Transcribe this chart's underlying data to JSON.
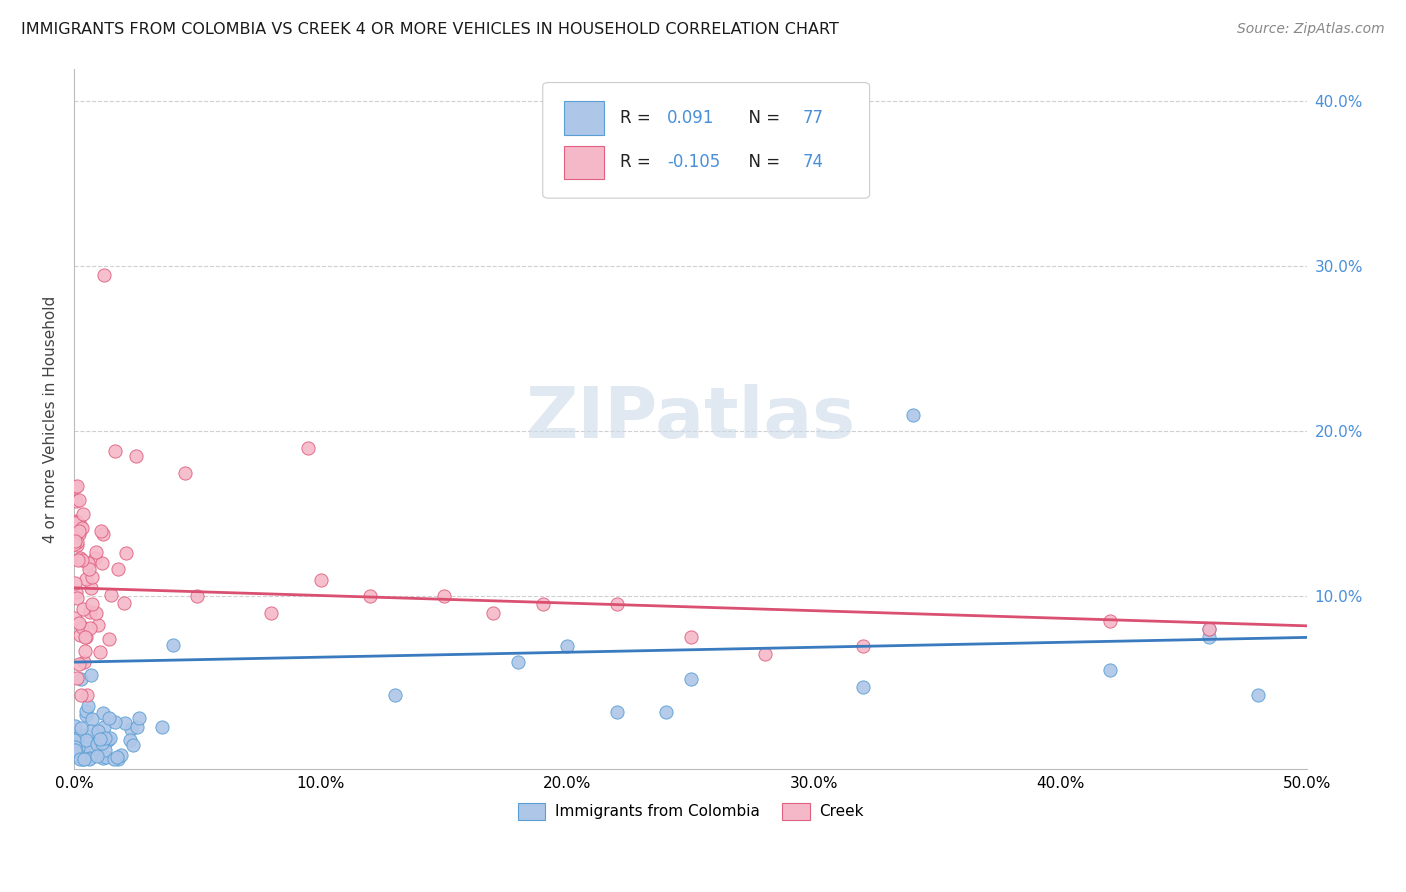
{
  "title": "IMMIGRANTS FROM COLOMBIA VS CREEK 4 OR MORE VEHICLES IN HOUSEHOLD CORRELATION CHART",
  "source": "Source: ZipAtlas.com",
  "ylabel": "4 or more Vehicles in Household",
  "xlim": [
    0.0,
    0.5
  ],
  "ylim": [
    -0.005,
    0.42
  ],
  "xticks": [
    0.0,
    0.1,
    0.2,
    0.3,
    0.4,
    0.5
  ],
  "xticklabels": [
    "0.0%",
    "10.0%",
    "20.0%",
    "30.0%",
    "40.0%",
    "50.0%"
  ],
  "yticks_right": [
    0.1,
    0.2,
    0.3,
    0.4
  ],
  "yticklabels_right": [
    "10.0%",
    "20.0%",
    "30.0%",
    "40.0%"
  ],
  "colombia_color_fill": "#aec6e8",
  "colombia_color_edge": "#5a9fd4",
  "creek_color_fill": "#f5b8c8",
  "creek_color_edge": "#e06080",
  "regression_colombia_color": "#3a7abf",
  "regression_creek_color": "#d95070",
  "watermark_color": "#ccd9e8",
  "grid_color": "#d0d0d0",
  "right_tick_color": "#4a90d9",
  "legend_R_color": "#4a90d9",
  "legend_N_color": "#4a90d9"
}
